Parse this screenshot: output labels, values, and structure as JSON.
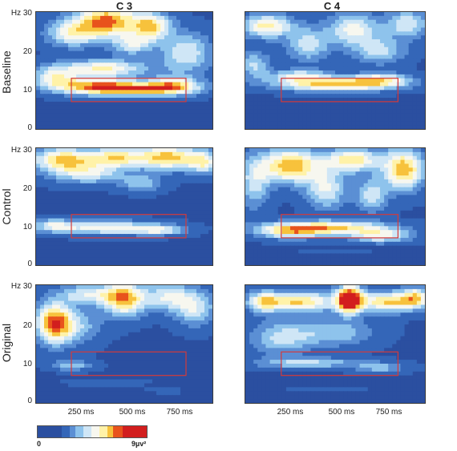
{
  "chart_data": {
    "type": "heatmap",
    "columns": [
      "C 3",
      "C 4"
    ],
    "rows": [
      "Baseline",
      "Control",
      "Original"
    ],
    "y_ticks": [
      "Hz 30",
      "20",
      "10",
      "0"
    ],
    "x_ticks": [
      "250 ms",
      "500 ms",
      "750 ms"
    ],
    "xlim_ms": [
      0,
      1000
    ],
    "ylim_hz": [
      0,
      30
    ],
    "colorbar": {
      "min_label": "0",
      "max_label": "9µv²",
      "colors": [
        "#2b4fa0",
        "#3466b8",
        "#5b8fd4",
        "#8ec3ec",
        "#cfe6f6",
        "#f7f7ef",
        "#fff2a8",
        "#f7c23c",
        "#e8531c",
        "#d21e1e"
      ]
    },
    "highlight_box": {
      "x_start_ms": 200,
      "x_end_ms": 850,
      "freq_low_hz": 7,
      "freq_high_hz": 13,
      "color": "#d43a3a"
    },
    "panels": [
      {
        "column": "C 3",
        "row": "Baseline"
      },
      {
        "column": "C 4",
        "row": "Baseline"
      },
      {
        "column": "C 3",
        "row": "Control"
      },
      {
        "column": "C 4",
        "row": "Control"
      },
      {
        "column": "C 3",
        "row": "Original"
      },
      {
        "column": "C 4",
        "row": "Original"
      }
    ]
  }
}
